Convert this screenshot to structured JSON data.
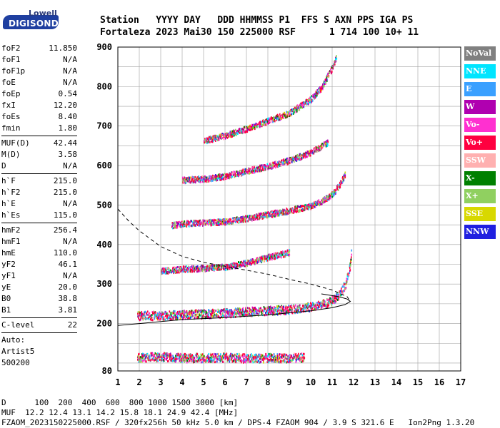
{
  "logo": {
    "brand": "Lowell",
    "product": "DIGISONDE"
  },
  "header": {
    "line1": "Station   YYYY DAY   DDD HHMMSS P1  FFS S AXN PPS IGA PS",
    "line2": "Fortaleza 2023 Mai30 150 225000 RSF      1 714 100 10+ 11"
  },
  "params": {
    "group1": [
      {
        "k": "foF2",
        "v": "11.850"
      },
      {
        "k": "foF1",
        "v": "N/A"
      },
      {
        "k": "foF1p",
        "v": "N/A"
      },
      {
        "k": "foE",
        "v": "N/A"
      },
      {
        "k": "foEp",
        "v": "0.54"
      },
      {
        "k": "fxI",
        "v": "12.20"
      },
      {
        "k": "foEs",
        "v": "8.40"
      },
      {
        "k": "fmin",
        "v": "1.80"
      }
    ],
    "group2": [
      {
        "k": "MUF(D)",
        "v": "42.44"
      },
      {
        "k": "M(D)",
        "v": "3.58"
      },
      {
        "k": "D",
        "v": "N/A"
      }
    ],
    "group3": [
      {
        "k": "h`F",
        "v": "215.0"
      },
      {
        "k": "h`F2",
        "v": "215.0"
      },
      {
        "k": "h`E",
        "v": "N/A"
      },
      {
        "k": "h`Es",
        "v": "115.0"
      }
    ],
    "group4": [
      {
        "k": "hmF2",
        "v": "256.4"
      },
      {
        "k": "hmF1",
        "v": "N/A"
      },
      {
        "k": "hmE",
        "v": "110.0"
      },
      {
        "k": "yF2",
        "v": "46.1"
      },
      {
        "k": "yF1",
        "v": "N/A"
      },
      {
        "k": "yE",
        "v": "20.0"
      },
      {
        "k": "B0",
        "v": "38.8"
      },
      {
        "k": "B1",
        "v": "3.81"
      }
    ],
    "group5": [
      {
        "k": "C-level",
        "v": "22"
      }
    ],
    "auto": [
      "Auto:",
      "Artist5",
      "500200"
    ]
  },
  "legend": [
    {
      "label": "NoVal",
      "color": "#808080"
    },
    {
      "label": "NNE",
      "color": "#00e5ff"
    },
    {
      "label": "E",
      "color": "#3aa0ff"
    },
    {
      "label": "W",
      "color": "#b000b0"
    },
    {
      "label": "Vo-",
      "color": "#ff30d0"
    },
    {
      "label": "Vo+",
      "color": "#ff0040"
    },
    {
      "label": "SSW",
      "color": "#ffb0b0"
    },
    {
      "label": "X-",
      "color": "#008000"
    },
    {
      "label": "X+",
      "color": "#90d060"
    },
    {
      "label": "SSE",
      "color": "#d8d800"
    },
    {
      "label": "NNW",
      "color": "#2020e0"
    }
  ],
  "footer": {
    "line1": "D      100  200  400  600  800 1000 1500 3000 [km]",
    "line2": "MUF  12.2 12.4 13.1 14.2 15.8 18.1 24.9 42.4 [MHz]",
    "line3": "FZAOM_2023150225000.RSF / 320fx256h 50 kHz 5.0 km / DPS-4 FZAOM 904 / 3.9 S 321.6 E   Ion2Png 1.3.20"
  },
  "chart_data": {
    "type": "scatter",
    "xlim": [
      1,
      17
    ],
    "ylim": [
      80,
      900
    ],
    "x_ticks": [
      "1",
      "2",
      "3",
      "4",
      "5",
      "6",
      "7",
      "8",
      "9",
      "10",
      "11",
      "12",
      "13",
      "14",
      "15",
      "16",
      "17"
    ],
    "y_ticks": [
      "900",
      "800",
      "700",
      "600",
      "500",
      "400",
      "300",
      "200",
      "80"
    ],
    "grid": true,
    "legend_position": "right",
    "traces": [
      {
        "name": "F2 trace 1",
        "points": [
          [
            1.9,
            222
          ],
          [
            3,
            222
          ],
          [
            4,
            224
          ],
          [
            5,
            226
          ],
          [
            6,
            228
          ],
          [
            7,
            232
          ],
          [
            8,
            234
          ],
          [
            9,
            238
          ],
          [
            10,
            244
          ],
          [
            10.5,
            250
          ],
          [
            11,
            260
          ],
          [
            11.3,
            275
          ],
          [
            11.6,
            300
          ],
          [
            11.8,
            340
          ],
          [
            11.9,
            385
          ]
        ]
      },
      {
        "name": "F2 trace 2",
        "points": [
          [
            3,
            335
          ],
          [
            4,
            340
          ],
          [
            5,
            342
          ],
          [
            6,
            345
          ],
          [
            7,
            355
          ],
          [
            8,
            370
          ],
          [
            9,
            382
          ]
        ]
      },
      {
        "name": "F2 trace 3",
        "points": [
          [
            3.5,
            450
          ],
          [
            4,
            455
          ],
          [
            5,
            458
          ],
          [
            6,
            460
          ],
          [
            7,
            468
          ],
          [
            8,
            478
          ],
          [
            9,
            488
          ],
          [
            10,
            500
          ],
          [
            10.5,
            512
          ],
          [
            11,
            530
          ],
          [
            11.3,
            550
          ],
          [
            11.6,
            580
          ]
        ]
      },
      {
        "name": "F2 trace 4",
        "points": [
          [
            4,
            565
          ],
          [
            5,
            568
          ],
          [
            6,
            575
          ],
          [
            7,
            588
          ],
          [
            8,
            600
          ],
          [
            9,
            615
          ],
          [
            10,
            635
          ],
          [
            10.8,
            660
          ]
        ]
      },
      {
        "name": "F2 trace 5",
        "points": [
          [
            5,
            665
          ],
          [
            6,
            678
          ],
          [
            7,
            695
          ],
          [
            8,
            715
          ],
          [
            9,
            735
          ],
          [
            10,
            770
          ],
          [
            10.5,
            800
          ],
          [
            11,
            850
          ],
          [
            11.2,
            880
          ]
        ]
      },
      {
        "name": "Es trace",
        "points": [
          [
            1.9,
            115
          ],
          [
            3,
            118
          ],
          [
            4,
            115
          ],
          [
            5,
            115
          ],
          [
            6,
            116
          ],
          [
            7,
            114
          ],
          [
            8,
            115
          ],
          [
            9,
            115
          ],
          [
            9.7,
            116
          ]
        ]
      }
    ],
    "model_curves": [
      {
        "name": "solid profile",
        "style": "solid",
        "points": [
          [
            1,
            195
          ],
          [
            2,
            200
          ],
          [
            4,
            210
          ],
          [
            6,
            215
          ],
          [
            8,
            222
          ],
          [
            10,
            232
          ],
          [
            11,
            240
          ],
          [
            11.6,
            248
          ],
          [
            11.85,
            256
          ],
          [
            11.7,
            262
          ],
          [
            11.3,
            268
          ],
          [
            10.5,
            275
          ]
        ]
      },
      {
        "name": "dashed profile",
        "style": "dashed",
        "points": [
          [
            1,
            490
          ],
          [
            1.5,
            460
          ],
          [
            2,
            435
          ],
          [
            3,
            395
          ],
          [
            4,
            370
          ],
          [
            5,
            355
          ],
          [
            6,
            345
          ],
          [
            7,
            335
          ],
          [
            8,
            325
          ],
          [
            9,
            312
          ],
          [
            10,
            300
          ],
          [
            11,
            285
          ],
          [
            11.7,
            268
          ],
          [
            11.85,
            256
          ]
        ]
      }
    ]
  }
}
